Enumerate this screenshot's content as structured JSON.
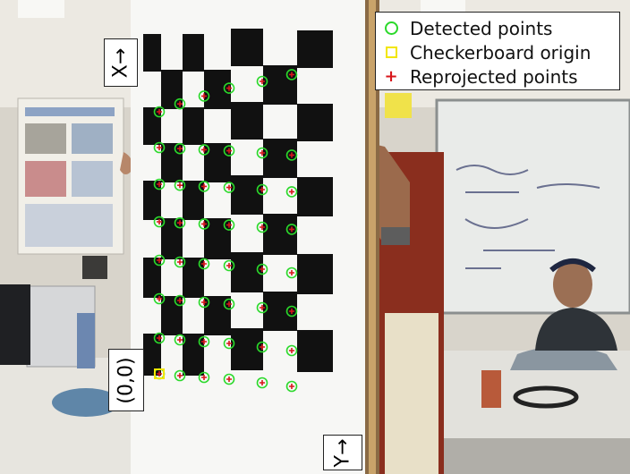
{
  "legend": {
    "detected": "Detected points",
    "origin": "Checkerboard origin",
    "reprojected": "Reprojected points"
  },
  "axes": {
    "x_label": "X→",
    "y_label": "Y→",
    "origin_label": "(0,0)"
  },
  "colors": {
    "detected": "#2bd92b",
    "origin": "#f2e600",
    "reprojected": "#d8161b"
  },
  "icons": {
    "detected": "circle-icon",
    "origin": "square-icon",
    "reprojected": "plus-icon"
  }
}
